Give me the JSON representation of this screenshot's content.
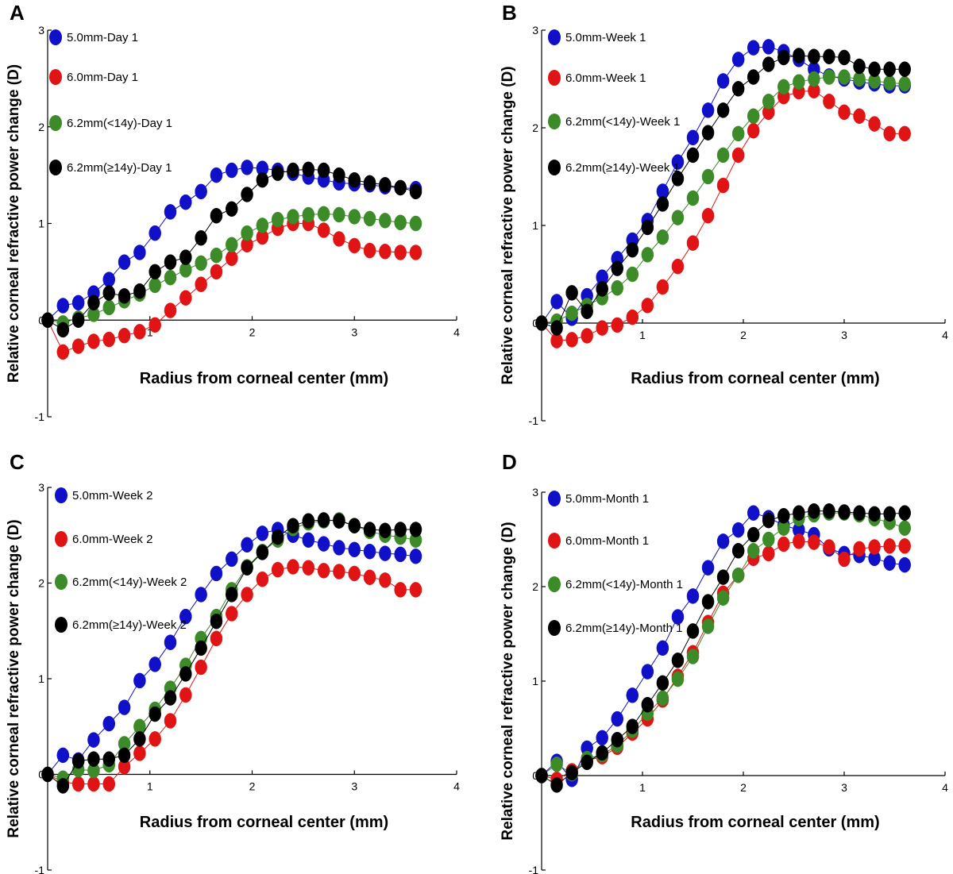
{
  "colors": {
    "blue": "#1010c8",
    "red": "#e01414",
    "green": "#3c8a28",
    "black": "#000000"
  },
  "chart_data": [
    {
      "type": "scatter",
      "panel": "A",
      "xlabel": "Radius from corneal center (mm)",
      "ylabel": "Relative corneal refractive power change (D)",
      "xlim": [
        0,
        4
      ],
      "ylim": [
        -1,
        3
      ],
      "xticks": [
        "1",
        "2",
        "3",
        "4"
      ],
      "yticks": [
        "-1",
        "0",
        "1",
        "2",
        "3"
      ],
      "x": [
        0.0,
        0.15,
        0.3,
        0.45,
        0.6,
        0.75,
        0.9,
        1.05,
        1.2,
        1.35,
        1.5,
        1.65,
        1.8,
        1.95,
        2.1,
        2.25,
        2.4,
        2.55,
        2.7,
        2.85,
        3.0,
        3.15,
        3.3,
        3.45,
        3.6
      ],
      "series": [
        {
          "name": "5.0mm-Day 1",
          "color": "blue",
          "values": [
            0.0,
            0.15,
            0.18,
            0.28,
            0.42,
            0.6,
            0.7,
            0.9,
            1.12,
            1.22,
            1.33,
            1.5,
            1.55,
            1.58,
            1.57,
            1.55,
            1.52,
            1.48,
            1.45,
            1.42,
            1.41,
            1.4,
            1.38,
            1.37,
            1.36
          ]
        },
        {
          "name": "6.0mm-Day 1",
          "color": "red",
          "values": [
            0.0,
            -0.33,
            -0.27,
            -0.22,
            -0.2,
            -0.16,
            -0.12,
            -0.05,
            0.1,
            0.23,
            0.37,
            0.5,
            0.64,
            0.78,
            0.86,
            0.95,
            1.0,
            1.0,
            0.93,
            0.84,
            0.77,
            0.72,
            0.71,
            0.7,
            0.7
          ]
        },
        {
          "name": "6.2mm(<14y)-Day 1",
          "color": "green",
          "values": [
            0.0,
            -0.03,
            0.02,
            0.06,
            0.13,
            0.2,
            0.27,
            0.36,
            0.44,
            0.52,
            0.59,
            0.67,
            0.78,
            0.9,
            0.98,
            1.04,
            1.07,
            1.09,
            1.1,
            1.09,
            1.07,
            1.05,
            1.03,
            1.01,
            1.0
          ]
        },
        {
          "name": "6.2mm(≥14y)-Day 1",
          "color": "black",
          "values": [
            0.0,
            -0.1,
            0.0,
            0.18,
            0.28,
            0.25,
            0.3,
            0.5,
            0.6,
            0.65,
            0.85,
            1.08,
            1.15,
            1.3,
            1.45,
            1.52,
            1.55,
            1.56,
            1.55,
            1.5,
            1.45,
            1.42,
            1.4,
            1.37,
            1.33
          ]
        }
      ]
    },
    {
      "type": "scatter",
      "panel": "B",
      "xlabel": "Radius from corneal center (mm)",
      "ylabel": "Relative corneal refractive power change (D)",
      "xlim": [
        0,
        4
      ],
      "ylim": [
        -1,
        3
      ],
      "xticks": [
        "1",
        "2",
        "3",
        "4"
      ],
      "yticks": [
        "-1",
        "0",
        "1",
        "2",
        "3"
      ],
      "x": [
        0.0,
        0.15,
        0.3,
        0.45,
        0.6,
        0.75,
        0.9,
        1.05,
        1.2,
        1.35,
        1.5,
        1.65,
        1.8,
        1.95,
        2.1,
        2.25,
        2.4,
        2.55,
        2.7,
        2.85,
        3.0,
        3.15,
        3.3,
        3.45,
        3.6
      ],
      "series": [
        {
          "name": "5.0mm-Week 1",
          "color": "blue",
          "values": [
            0.0,
            0.22,
            0.05,
            0.28,
            0.47,
            0.66,
            0.85,
            1.05,
            1.35,
            1.65,
            1.9,
            2.18,
            2.48,
            2.7,
            2.82,
            2.83,
            2.78,
            2.7,
            2.6,
            2.53,
            2.5,
            2.47,
            2.45,
            2.43,
            2.43
          ]
        },
        {
          "name": "6.0mm-Week 1",
          "color": "red",
          "values": [
            0.0,
            -0.18,
            -0.17,
            -0.13,
            -0.05,
            -0.02,
            0.06,
            0.18,
            0.37,
            0.58,
            0.82,
            1.1,
            1.41,
            1.72,
            1.97,
            2.16,
            2.32,
            2.37,
            2.38,
            2.27,
            2.16,
            2.12,
            2.04,
            1.94,
            1.94
          ]
        },
        {
          "name": "6.2mm(<14y)-Week 1",
          "color": "green",
          "values": [
            0.0,
            0.02,
            0.1,
            0.18,
            0.26,
            0.36,
            0.5,
            0.7,
            0.88,
            1.08,
            1.28,
            1.5,
            1.72,
            1.94,
            2.12,
            2.27,
            2.42,
            2.47,
            2.5,
            2.52,
            2.52,
            2.5,
            2.48,
            2.46,
            2.45
          ]
        },
        {
          "name": "6.2mm(≥14y)-Week 1",
          "color": "black",
          "values": [
            0.0,
            -0.05,
            0.31,
            0.12,
            0.35,
            0.56,
            0.75,
            0.98,
            1.22,
            1.48,
            1.72,
            1.95,
            2.18,
            2.4,
            2.52,
            2.65,
            2.72,
            2.74,
            2.73,
            2.73,
            2.72,
            2.63,
            2.6,
            2.6,
            2.6
          ]
        }
      ]
    },
    {
      "type": "scatter",
      "panel": "C",
      "xlabel": "Radius from corneal center (mm)",
      "ylabel": "Relative corneal refractive power change (D)",
      "xlim": [
        0,
        4
      ],
      "ylim": [
        -1,
        3
      ],
      "xticks": [
        "1",
        "2",
        "3",
        "4"
      ],
      "yticks": [
        "-1",
        "0",
        "1",
        "2",
        "3"
      ],
      "x": [
        0.0,
        0.15,
        0.3,
        0.45,
        0.6,
        0.75,
        0.9,
        1.05,
        1.2,
        1.35,
        1.5,
        1.65,
        1.8,
        1.95,
        2.1,
        2.25,
        2.4,
        2.55,
        2.7,
        2.85,
        3.0,
        3.15,
        3.3,
        3.45,
        3.6
      ],
      "series": [
        {
          "name": "5.0mm-Week 2",
          "color": "blue",
          "values": [
            0.0,
            0.2,
            0.15,
            0.36,
            0.53,
            0.7,
            0.98,
            1.15,
            1.38,
            1.65,
            1.88,
            2.1,
            2.25,
            2.4,
            2.52,
            2.56,
            2.5,
            2.45,
            2.41,
            2.37,
            2.35,
            2.33,
            2.31,
            2.3,
            2.28
          ]
        },
        {
          "name": "6.0mm-Week 2",
          "color": "red",
          "values": [
            0.0,
            -0.08,
            -0.1,
            -0.1,
            -0.1,
            0.08,
            0.22,
            0.37,
            0.56,
            0.83,
            1.12,
            1.42,
            1.68,
            1.88,
            2.04,
            2.14,
            2.17,
            2.16,
            2.13,
            2.12,
            2.1,
            2.06,
            2.03,
            1.93,
            1.93
          ]
        },
        {
          "name": "6.2mm(<14y)-Week 2",
          "color": "green",
          "values": [
            0.0,
            -0.04,
            0.05,
            0.04,
            0.1,
            0.32,
            0.5,
            0.68,
            0.9,
            1.14,
            1.42,
            1.65,
            1.93,
            2.17,
            2.33,
            2.45,
            2.57,
            2.63,
            2.65,
            2.66,
            2.6,
            2.54,
            2.5,
            2.48,
            2.45
          ]
        },
        {
          "name": "6.2mm(≥14y)-Week 2",
          "color": "black",
          "values": [
            0.0,
            -0.12,
            0.14,
            0.16,
            0.16,
            0.2,
            0.37,
            0.63,
            0.8,
            1.05,
            1.32,
            1.6,
            1.88,
            2.16,
            2.32,
            2.48,
            2.6,
            2.65,
            2.66,
            2.65,
            2.6,
            2.56,
            2.55,
            2.56,
            2.56
          ]
        }
      ]
    },
    {
      "type": "scatter",
      "panel": "D",
      "xlabel": "Radius from corneal center (mm)",
      "ylabel": "Relative corneal refractive power change (D)",
      "xlim": [
        0,
        4
      ],
      "ylim": [
        -1,
        3
      ],
      "xticks": [
        "1",
        "2",
        "3",
        "4"
      ],
      "yticks": [
        "-1",
        "0",
        "1",
        "2",
        "3"
      ],
      "x": [
        0.0,
        0.15,
        0.3,
        0.45,
        0.6,
        0.75,
        0.9,
        1.05,
        1.2,
        1.35,
        1.5,
        1.65,
        1.8,
        1.95,
        2.1,
        2.25,
        2.4,
        2.55,
        2.7,
        2.85,
        3.0,
        3.15,
        3.3,
        3.45,
        3.6
      ],
      "series": [
        {
          "name": "5.0mm-Month 1",
          "color": "blue",
          "values": [
            0.0,
            0.15,
            -0.04,
            0.29,
            0.4,
            0.6,
            0.85,
            1.1,
            1.35,
            1.68,
            1.9,
            2.2,
            2.48,
            2.6,
            2.78,
            2.73,
            2.65,
            2.6,
            2.55,
            2.4,
            2.35,
            2.33,
            2.3,
            2.25,
            2.23
          ]
        },
        {
          "name": "6.0mm-Month 1",
          "color": "red",
          "values": [
            0.0,
            -0.04,
            0.05,
            0.16,
            0.2,
            0.3,
            0.45,
            0.6,
            0.8,
            1.05,
            1.3,
            1.62,
            1.93,
            2.12,
            2.3,
            2.35,
            2.45,
            2.48,
            2.47,
            2.42,
            2.29,
            2.4,
            2.42,
            2.43,
            2.43
          ]
        },
        {
          "name": "6.2mm(<14y)-Month 1",
          "color": "green",
          "values": [
            0.0,
            0.12,
            0.02,
            0.18,
            0.22,
            0.32,
            0.48,
            0.66,
            0.82,
            1.02,
            1.26,
            1.58,
            1.88,
            2.12,
            2.38,
            2.5,
            2.62,
            2.72,
            2.76,
            2.78,
            2.78,
            2.76,
            2.72,
            2.68,
            2.62
          ]
        },
        {
          "name": "6.2mm(≥14y)-Month 1",
          "color": "black",
          "values": [
            0.0,
            -0.1,
            0.03,
            0.14,
            0.24,
            0.38,
            0.52,
            0.75,
            0.98,
            1.22,
            1.53,
            1.84,
            2.1,
            2.38,
            2.55,
            2.7,
            2.75,
            2.78,
            2.8,
            2.8,
            2.79,
            2.78,
            2.77,
            2.77,
            2.78
          ]
        }
      ]
    }
  ]
}
